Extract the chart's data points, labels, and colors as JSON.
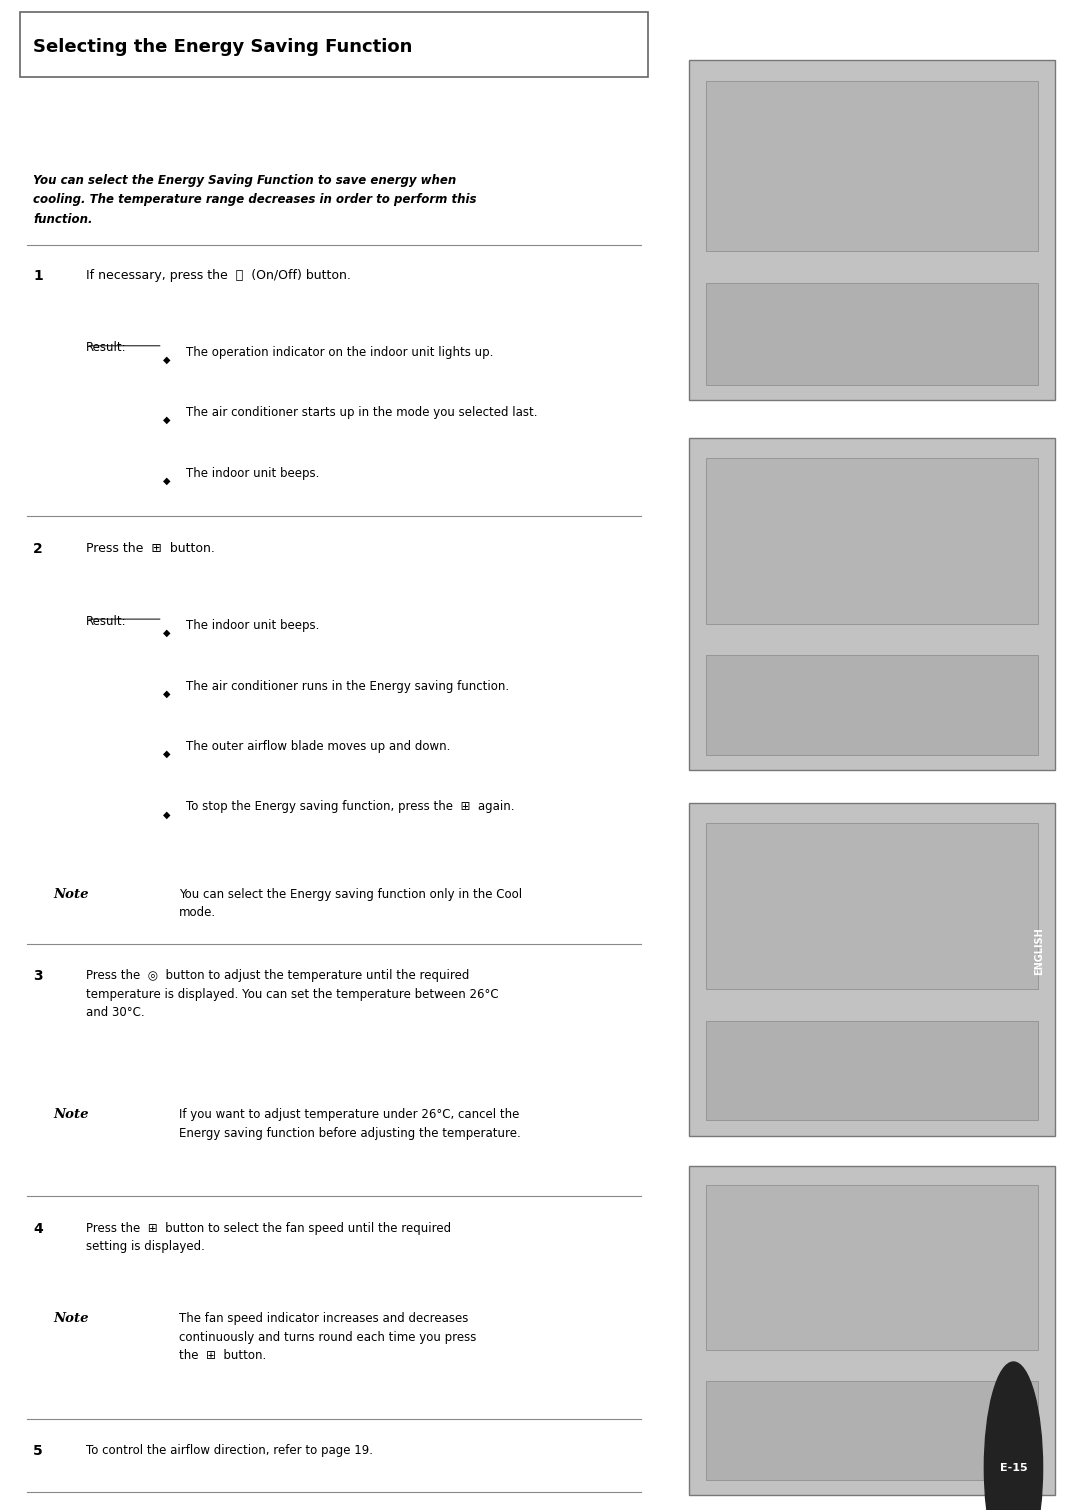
{
  "title": "Selecting the Energy Saving Function",
  "bg_color": "#ffffff",
  "right_panel_color": "#d0d0d0",
  "sidebar_color": "#555555",
  "sidebar_text": "ENGLISH",
  "intro_text": "You can select the Energy Saving Function to save energy when\ncooling. The temperature range decreases in order to perform this\nfunction.",
  "step1_num": "1",
  "step1_bullets": [
    "The operation indicator on the indoor unit lights up.",
    "The air conditioner starts up in the mode you selected last.",
    "The indoor unit beeps."
  ],
  "step2_num": "2",
  "step2_bullets": [
    "The indoor unit beeps.",
    "The air conditioner runs in the Energy saving function.",
    "The outer airflow blade moves up and down.",
    "To stop the Energy saving function, press the  [btn]  again."
  ],
  "step2_note": "You can select the Energy saving function only in the Cool\nmode.",
  "step3_note": "If you want to adjust temperature under 26°C, cancel the\nEnergy saving function before adjusting the temperature.",
  "step4_note": "The fan speed indicator increases and decreases\ncontinuously and turns round each time you press\nthe  [btn]  button.",
  "step5_main": "To control the airflow direction, refer to page 19.",
  "page_num": "E-15"
}
